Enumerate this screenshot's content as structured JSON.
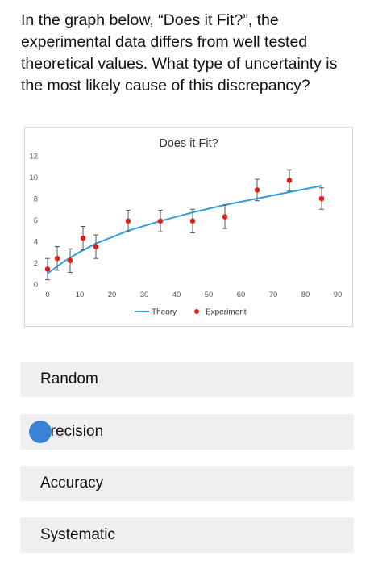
{
  "question": "In the graph below, “Does it Fit?”, the experimental data differs from well tested theoretical values. What type of uncertainty is the most likely cause of this discrepancy?",
  "options": [
    {
      "label": "Random",
      "selected": false
    },
    {
      "label": "Precision",
      "selected": true
    },
    {
      "label": "Accuracy",
      "selected": false
    },
    {
      "label": "Systematic",
      "selected": false
    }
  ],
  "accent_color": "#3b82d6",
  "chart_data": {
    "type": "scatter",
    "title": "Does it Fit?",
    "xlim": [
      0,
      90
    ],
    "ylim": [
      0,
      12
    ],
    "x_ticks": [
      0,
      10,
      20,
      30,
      40,
      50,
      60,
      70,
      80,
      90
    ],
    "y_ticks": [
      0,
      2,
      4,
      6,
      8,
      10,
      12
    ],
    "grid": false,
    "legend_position": "bottom",
    "series": [
      {
        "name": "Theory",
        "kind": "line",
        "color": "#2e9fd8",
        "x": [
          0,
          5,
          10,
          15,
          25,
          35,
          45,
          55,
          65,
          75,
          85
        ],
        "y": [
          1.0,
          2.1,
          3.0,
          3.8,
          5.0,
          5.9,
          6.7,
          7.4,
          8.0,
          8.6,
          9.2
        ]
      },
      {
        "name": "Experiment",
        "kind": "points",
        "color": "#e0201b",
        "x": [
          0,
          3,
          7,
          11,
          15,
          25,
          35,
          45,
          55,
          65,
          75,
          85
        ],
        "y": [
          1.4,
          2.4,
          2.2,
          4.3,
          3.5,
          5.9,
          5.9,
          5.9,
          6.3,
          8.8,
          9.7,
          8.0
        ],
        "error": [
          1.0,
          1.1,
          1.1,
          1.1,
          1.1,
          1.0,
          1.0,
          1.1,
          1.1,
          1.0,
          1.0,
          1.0
        ]
      }
    ]
  }
}
